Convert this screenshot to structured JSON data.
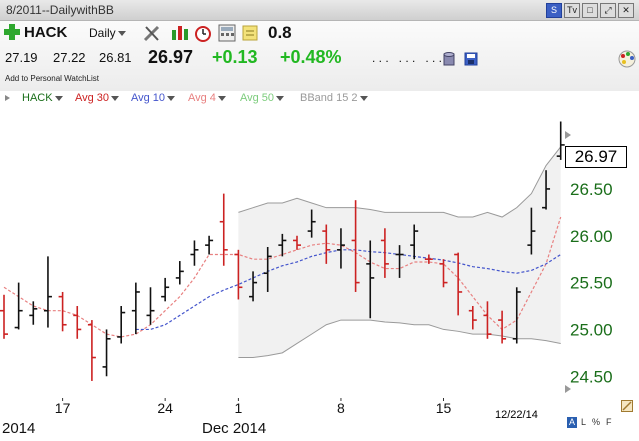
{
  "window": {
    "title": "8/2011--DailywithBB",
    "buttons": [
      "S",
      "Tv",
      "□",
      "⤢",
      "✕"
    ]
  },
  "toolbar": {
    "symbol": "HACK",
    "period": "Daily",
    "value_readout": "0.8",
    "open": "27.19",
    "high": "27.22",
    "low": "26.81",
    "last": "26.97",
    "change": "+0.13",
    "change_pct": "+0.48%",
    "dots": ". . .   . . .   . . .",
    "watchlist_link": "Add to Personal WatchList",
    "colors": {
      "up": "#22b822",
      "down": "#cc2222",
      "accent": "#1a6e1a"
    }
  },
  "indicators": [
    {
      "label": "HACK",
      "color": "#1a6e1a"
    },
    {
      "label": "Avg 30",
      "color": "#cc2222"
    },
    {
      "label": "Avg 10",
      "color": "#4455cc"
    },
    {
      "label": "Avg 4",
      "color": "#e88080"
    },
    {
      "label": "Avg 50",
      "color": "#7ccc7c"
    },
    {
      "label": "BBand 15 2",
      "color": "#9a9a9a"
    }
  ],
  "chart_data": {
    "type": "ohlc",
    "symbol": "HACK",
    "y_axis": {
      "min": 24.3,
      "max": 27.3,
      "ticks": [
        "24.50",
        "25.00",
        "25.50",
        "26.00",
        "26.50"
      ]
    },
    "x_ticks": [
      "17",
      "24",
      "1",
      "8",
      "15"
    ],
    "x_labels_bottom": [
      "2014",
      "Dec 2014"
    ],
    "last_value_label": "26.97",
    "date_stamp": "12/22/14",
    "bars": [
      {
        "o": 25.2,
        "h": 25.37,
        "l": 24.9,
        "c": 24.95,
        "dir": "down"
      },
      {
        "o": 25.02,
        "h": 25.5,
        "l": 25.0,
        "c": 25.2,
        "dir": "up"
      },
      {
        "o": 25.15,
        "h": 25.3,
        "l": 25.05,
        "c": 25.22,
        "dir": "up"
      },
      {
        "o": 25.2,
        "h": 25.78,
        "l": 25.02,
        "c": 25.35,
        "dir": "up"
      },
      {
        "o": 25.35,
        "h": 25.4,
        "l": 24.98,
        "c": 25.05,
        "dir": "down"
      },
      {
        "o": 25.15,
        "h": 25.25,
        "l": 24.9,
        "c": 25.0,
        "dir": "down"
      },
      {
        "o": 25.05,
        "h": 25.1,
        "l": 24.45,
        "c": 24.7,
        "dir": "down"
      },
      {
        "o": 24.6,
        "h": 25.0,
        "l": 24.5,
        "c": 24.9,
        "dir": "up"
      },
      {
        "o": 24.92,
        "h": 25.25,
        "l": 24.85,
        "c": 25.18,
        "dir": "up"
      },
      {
        "o": 25.2,
        "h": 25.5,
        "l": 24.95,
        "c": 25.4,
        "dir": "up"
      },
      {
        "o": 25.15,
        "h": 25.45,
        "l": 25.05,
        "c": 25.2,
        "dir": "up"
      },
      {
        "o": 25.35,
        "h": 25.55,
        "l": 25.3,
        "c": 25.45,
        "dir": "up"
      },
      {
        "o": 25.55,
        "h": 25.73,
        "l": 25.48,
        "c": 25.62,
        "dir": "up"
      },
      {
        "o": 25.8,
        "h": 25.95,
        "l": 25.68,
        "c": 25.85,
        "dir": "up"
      },
      {
        "o": 25.9,
        "h": 26.0,
        "l": 25.8,
        "c": 25.95,
        "dir": "up"
      },
      {
        "o": 26.15,
        "h": 26.45,
        "l": 25.68,
        "c": 25.85,
        "dir": "down"
      },
      {
        "o": 25.8,
        "h": 25.85,
        "l": 25.32,
        "c": 25.45,
        "dir": "down"
      },
      {
        "o": 25.35,
        "h": 25.62,
        "l": 25.3,
        "c": 25.5,
        "dir": "up"
      },
      {
        "o": 25.6,
        "h": 25.88,
        "l": 25.4,
        "c": 25.78,
        "dir": "up"
      },
      {
        "o": 25.9,
        "h": 26.02,
        "l": 25.78,
        "c": 25.95,
        "dir": "up"
      },
      {
        "o": 25.95,
        "h": 26.0,
        "l": 25.85,
        "c": 25.9,
        "dir": "down"
      },
      {
        "o": 26.05,
        "h": 26.28,
        "l": 25.98,
        "c": 26.15,
        "dir": "up"
      },
      {
        "o": 26.05,
        "h": 26.12,
        "l": 25.7,
        "c": 25.85,
        "dir": "down"
      },
      {
        "o": 25.85,
        "h": 26.08,
        "l": 25.65,
        "c": 25.9,
        "dir": "up"
      },
      {
        "o": 25.95,
        "h": 26.38,
        "l": 25.4,
        "c": 25.5,
        "dir": "down"
      },
      {
        "o": 25.7,
        "h": 25.95,
        "l": 25.12,
        "c": 25.55,
        "dir": "up"
      },
      {
        "o": 25.95,
        "h": 26.08,
        "l": 25.55,
        "c": 25.7,
        "dir": "down"
      },
      {
        "o": 25.8,
        "h": 25.9,
        "l": 25.55,
        "c": 25.8,
        "dir": "up"
      },
      {
        "o": 25.9,
        "h": 26.12,
        "l": 25.75,
        "c": 26.05,
        "dir": "up"
      },
      {
        "o": 25.75,
        "h": 25.8,
        "l": 25.7,
        "c": 25.75,
        "dir": "down"
      },
      {
        "o": 25.7,
        "h": 25.75,
        "l": 25.45,
        "c": 25.5,
        "dir": "down"
      },
      {
        "o": 25.8,
        "h": 25.82,
        "l": 25.15,
        "c": 25.4,
        "dir": "down"
      },
      {
        "o": 25.2,
        "h": 25.25,
        "l": 25.0,
        "c": 25.1,
        "dir": "down"
      },
      {
        "o": 25.15,
        "h": 25.3,
        "l": 24.9,
        "c": 24.95,
        "dir": "down"
      },
      {
        "o": 25.1,
        "h": 25.2,
        "l": 24.85,
        "c": 24.9,
        "dir": "down"
      },
      {
        "o": 24.9,
        "h": 25.45,
        "l": 24.85,
        "c": 25.4,
        "dir": "up"
      },
      {
        "o": 25.9,
        "h": 26.3,
        "l": 25.8,
        "c": 26.05,
        "dir": "up"
      },
      {
        "o": 26.3,
        "h": 26.7,
        "l": 26.28,
        "c": 26.5,
        "dir": "up"
      },
      {
        "o": 26.85,
        "h": 27.22,
        "l": 26.81,
        "c": 26.97,
        "dir": "up"
      }
    ],
    "series": [
      {
        "name": "Avg 4",
        "color": "#e88080",
        "values": [
          25.45,
          25.35,
          25.25,
          25.2,
          25.2,
          25.15,
          25.05,
          24.95,
          24.92,
          24.95,
          25.05,
          25.2,
          25.35,
          25.55,
          25.8,
          25.8,
          25.8,
          25.75,
          25.75,
          25.8,
          25.85,
          25.9,
          25.92,
          25.9,
          25.82,
          25.72,
          25.65,
          25.65,
          25.72,
          25.72,
          25.7,
          25.55,
          25.35,
          25.15,
          25.0,
          25.1,
          25.4,
          25.7,
          26.2
        ]
      },
      {
        "name": "Avg 10",
        "color": "#4455cc",
        "values": [
          null,
          null,
          null,
          null,
          null,
          null,
          null,
          null,
          null,
          25.0,
          25.0,
          25.05,
          25.15,
          25.25,
          25.35,
          25.42,
          25.48,
          25.55,
          25.62,
          25.68,
          25.72,
          25.78,
          25.82,
          25.85,
          25.85,
          25.83,
          25.82,
          25.8,
          25.78,
          25.76,
          25.74,
          25.71,
          25.67,
          25.65,
          25.62,
          25.6,
          25.63,
          25.7,
          25.8
        ]
      },
      {
        "name": "BBand 15 2",
        "color": "#9a9a9a",
        "upper": [
          null,
          null,
          null,
          null,
          null,
          null,
          null,
          null,
          null,
          null,
          null,
          null,
          null,
          null,
          null,
          null,
          26.25,
          26.3,
          26.35,
          26.35,
          26.4,
          26.35,
          26.3,
          26.3,
          26.3,
          26.28,
          26.25,
          26.25,
          26.25,
          26.25,
          26.25,
          26.2,
          26.2,
          26.25,
          26.2,
          26.3,
          26.45,
          26.75,
          26.95
        ],
        "lower": [
          null,
          null,
          null,
          null,
          null,
          null,
          null,
          null,
          null,
          null,
          null,
          null,
          null,
          null,
          null,
          null,
          24.7,
          24.7,
          24.72,
          24.75,
          24.85,
          24.95,
          25.05,
          25.1,
          25.1,
          25.1,
          25.08,
          25.07,
          25.05,
          25.05,
          25.0,
          24.98,
          24.95,
          24.95,
          24.93,
          24.9,
          24.9,
          24.88,
          24.85
        ]
      }
    ]
  }
}
